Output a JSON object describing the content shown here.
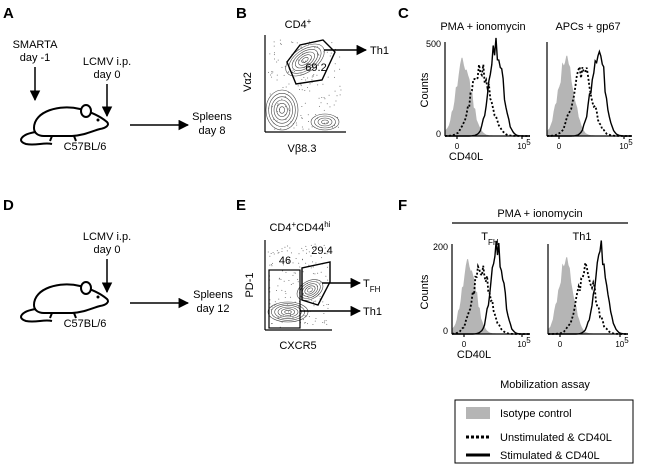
{
  "panel_labels": [
    "A",
    "B",
    "C",
    "D",
    "E",
    "F"
  ],
  "A": {
    "donor": [
      "SMARTA",
      "day -1"
    ],
    "infection": [
      "LCMV i.p.",
      "day 0"
    ],
    "mouse": "C57BL/6",
    "readout": [
      "Spleens",
      "day 8"
    ]
  },
  "B": {
    "title": {
      "text": "CD4",
      "sup": "+"
    },
    "y_axis": "Vα2",
    "x_axis": "Vβ8.3",
    "gate_value": "69.2",
    "gate_target": "Th1"
  },
  "C": {
    "plots": [
      {
        "title": "PMA + ionomycin"
      },
      {
        "title": "APCs + gp67"
      }
    ],
    "y_axis": "Counts",
    "y_ticks": [
      "500",
      "0"
    ],
    "x_axis": "CD40L",
    "x_ticks": [
      "0",
      {
        "base": "10",
        "sup": "5"
      }
    ]
  },
  "D": {
    "infection": [
      "LCMV i.p.",
      "day 0"
    ],
    "mouse": "C57BL/6",
    "readout": [
      "Spleens",
      "day 12"
    ]
  },
  "E": {
    "title": {
      "a": "CD4",
      "a_sup": "+",
      "b": "CD44",
      "b_sup": "hi"
    },
    "y_axis": "PD-1",
    "x_axis": "CXCR5",
    "gate_left": "46",
    "gate_right": "29.4",
    "targets": [
      {
        "text": "T",
        "sub": "FH"
      },
      {
        "text": "Th1"
      }
    ]
  },
  "F": {
    "stimulus": "PMA + ionomycin",
    "plots": [
      {
        "title": {
          "text": "T",
          "sub": "FH"
        }
      },
      {
        "title": {
          "text": "Th1"
        }
      }
    ],
    "y_axis": "Counts",
    "y_ticks": [
      "200",
      "0"
    ],
    "x_axis": "CD40L",
    "x_ticks": [
      "0",
      {
        "base": "10",
        "sup": "5"
      }
    ]
  },
  "legend": {
    "title": "Mobilization assay",
    "entries": [
      "Isotype control",
      "Unstimulated & CD40L",
      "Stimulated & CD40L"
    ]
  }
}
